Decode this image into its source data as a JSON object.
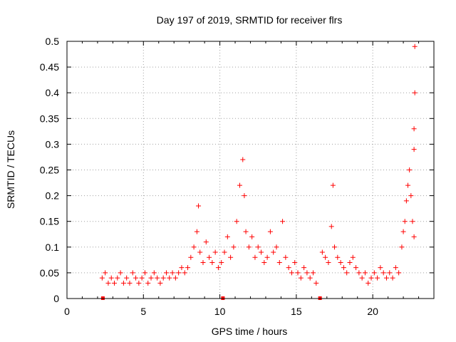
{
  "chart_data": {
    "type": "scatter",
    "title": "Day 197 of 2019, SRMTID for receiver flrs",
    "xlabel": "GPS time / hours",
    "ylabel": "SRMTID / TECUs",
    "xlim": [
      0,
      24
    ],
    "ylim": [
      0,
      0.5
    ],
    "xticks": [
      0,
      5,
      10,
      15,
      20
    ],
    "xtick_labels": [
      "0",
      "5",
      "10",
      "15",
      "20"
    ],
    "yticks": [
      0,
      0.05,
      0.1,
      0.15,
      0.2,
      0.25,
      0.3,
      0.35,
      0.4,
      0.45,
      0.5
    ],
    "ytick_labels": [
      "0",
      "0.05",
      "0.1",
      "0.15",
      "0.2",
      "0.25",
      "0.3",
      "0.35",
      "0.4",
      "0.45",
      "0.5"
    ],
    "grid": true,
    "marker": "plus",
    "colors": {
      "points": "#ff0000",
      "grid": "#a0a0a0",
      "axes": "#000000"
    },
    "series": [
      {
        "x": [
          2.3,
          2.5,
          2.7,
          2.9,
          3.1,
          3.3,
          3.5,
          3.7,
          3.9,
          4.1,
          4.3,
          4.5,
          4.7,
          4.9,
          5.1,
          5.3,
          5.5,
          5.7,
          5.9,
          6.1,
          6.3,
          6.5,
          6.7,
          6.9,
          7.1,
          7.3,
          7.5,
          7.7,
          7.9,
          8.1,
          8.3,
          8.5,
          8.6,
          8.7,
          8.9,
          9.1,
          9.3,
          9.5,
          9.7,
          9.9,
          10.1,
          10.3,
          10.5,
          10.7,
          10.9,
          11.1,
          11.3,
          11.5,
          11.6,
          11.7,
          11.9,
          12.1,
          12.3,
          12.5,
          12.7,
          12.9,
          13.1,
          13.3,
          13.5,
          13.7,
          13.9,
          14.1,
          14.3,
          14.5,
          14.7,
          14.9,
          15.1,
          15.3,
          15.5,
          15.7,
          15.9,
          16.1,
          16.3,
          16.7,
          16.9,
          17.1,
          17.3,
          17.4,
          17.5,
          17.7,
          17.9,
          18.1,
          18.3,
          18.5,
          18.7,
          18.9,
          19.1,
          19.3,
          19.5,
          19.7,
          19.9,
          20.1,
          20.3,
          20.5,
          20.7,
          20.9,
          21.1,
          21.3,
          21.5,
          21.7,
          21.9,
          22.0,
          22.1,
          22.2,
          22.3,
          22.4,
          22.5,
          22.6,
          22.7,
          22.7,
          22.7,
          22.75,
          22.75
        ],
        "y": [
          0.04,
          0.05,
          0.03,
          0.04,
          0.03,
          0.04,
          0.05,
          0.03,
          0.04,
          0.03,
          0.05,
          0.04,
          0.03,
          0.04,
          0.05,
          0.03,
          0.04,
          0.05,
          0.04,
          0.03,
          0.04,
          0.05,
          0.04,
          0.05,
          0.04,
          0.05,
          0.06,
          0.05,
          0.06,
          0.08,
          0.1,
          0.13,
          0.18,
          0.09,
          0.07,
          0.11,
          0.08,
          0.07,
          0.09,
          0.06,
          0.07,
          0.09,
          0.12,
          0.08,
          0.1,
          0.15,
          0.22,
          0.27,
          0.2,
          0.13,
          0.1,
          0.12,
          0.08,
          0.1,
          0.09,
          0.07,
          0.08,
          0.13,
          0.09,
          0.1,
          0.07,
          0.15,
          0.08,
          0.06,
          0.05,
          0.07,
          0.05,
          0.04,
          0.06,
          0.05,
          0.04,
          0.05,
          0.03,
          0.09,
          0.08,
          0.07,
          0.14,
          0.22,
          0.1,
          0.08,
          0.07,
          0.06,
          0.05,
          0.07,
          0.08,
          0.06,
          0.05,
          0.04,
          0.05,
          0.03,
          0.04,
          0.05,
          0.04,
          0.06,
          0.05,
          0.04,
          0.05,
          0.04,
          0.06,
          0.05,
          0.1,
          0.13,
          0.15,
          0.19,
          0.22,
          0.25,
          0.2,
          0.15,
          0.12,
          0.29,
          0.33,
          0.4,
          0.49
        ]
      }
    ],
    "baseline_markers": {
      "x": [
        2.35,
        10.2,
        16.55
      ],
      "y": 0
    }
  }
}
